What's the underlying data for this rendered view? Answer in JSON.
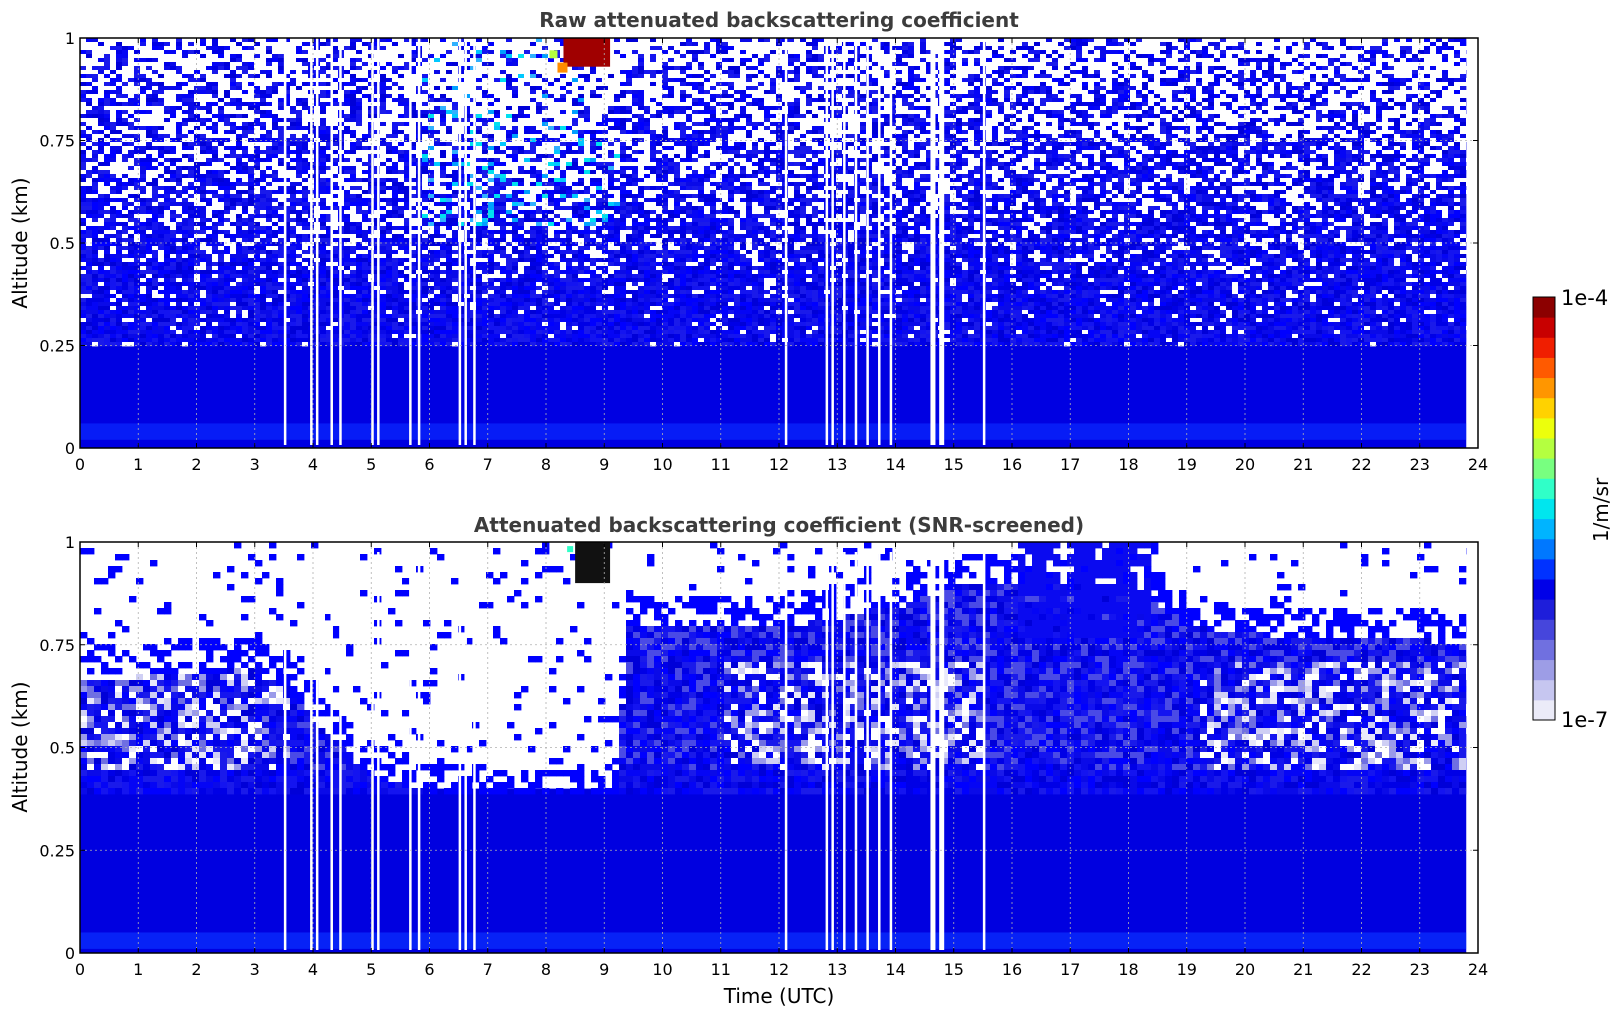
{
  "chart_data": [
    {
      "type": "heatmap",
      "title": "Raw attenuated backscattering coefficient",
      "xlabel": "",
      "ylabel": "Altitude (km)",
      "xlim": [
        0,
        24
      ],
      "ylim": [
        0,
        1
      ],
      "x_ticks": [
        "0",
        "1",
        "2",
        "3",
        "4",
        "5",
        "6",
        "7",
        "8",
        "9",
        "10",
        "11",
        "12",
        "13",
        "14",
        "15",
        "16",
        "17",
        "18",
        "19",
        "20",
        "21",
        "22",
        "23",
        "24"
      ],
      "y_ticks": [
        "0",
        "0.25",
        "0.5",
        "0.75",
        "1"
      ],
      "data_end_time": 23.8,
      "grid": true,
      "colorscale": "jet, log10 1e-7 to 1e-4",
      "features": {
        "near_surface_layer_top_km": 0.25,
        "signal_gaps_utc": [
          3.5,
          3.95,
          4.05,
          4.3,
          4.45,
          5.0,
          5.1,
          5.65,
          5.8,
          6.5,
          6.6,
          6.75,
          12.1,
          12.8,
          12.9,
          13.1,
          13.3,
          13.5,
          13.7,
          13.9,
          14.6,
          14.75,
          15.5
        ],
        "high_signal_patch": {
          "time_utc": [
            8.3,
            9.1
          ],
          "altitude_km": [
            0.93,
            1.0
          ],
          "value": "1e-4"
        }
      }
    },
    {
      "type": "heatmap",
      "title": "Attenuated backscattering coefficient (SNR-screened)",
      "xlabel": "Time (UTC)",
      "ylabel": "Altitude (km)",
      "xlim": [
        0,
        24
      ],
      "ylim": [
        0,
        1
      ],
      "x_ticks": [
        "0",
        "1",
        "2",
        "3",
        "4",
        "5",
        "6",
        "7",
        "8",
        "9",
        "10",
        "11",
        "12",
        "13",
        "14",
        "15",
        "16",
        "17",
        "18",
        "19",
        "20",
        "21",
        "22",
        "23",
        "24"
      ],
      "y_ticks": [
        "0",
        "0.25",
        "0.5",
        "0.75",
        "1"
      ],
      "data_end_time": 23.8,
      "grid": true,
      "colorscale": "jet, log10 1e-7 to 1e-4",
      "features": {
        "screened_top_km": [
          [
            0,
            0.72
          ],
          [
            3,
            0.75
          ],
          [
            3.5,
            0.7
          ],
          [
            4,
            0.62
          ],
          [
            4.5,
            0.55
          ],
          [
            5,
            0.48
          ],
          [
            6,
            0.45
          ],
          [
            7,
            0.43
          ],
          [
            8,
            0.42
          ],
          [
            9.2,
            0.45
          ],
          [
            9.3,
            0.85
          ],
          [
            12,
            0.85
          ],
          [
            14,
            0.9
          ],
          [
            15,
            0.95
          ],
          [
            16,
            0.95
          ],
          [
            18,
            0.95
          ],
          [
            19,
            0.85
          ],
          [
            21,
            0.82
          ],
          [
            23,
            0.82
          ],
          [
            23.8,
            0.8
          ]
        ],
        "high_signal_patch": {
          "time_utc": [
            8.5,
            9.1
          ],
          "altitude_km": [
            0.9,
            1.0
          ],
          "value": ">1e-4"
        }
      }
    }
  ],
  "colorbar": {
    "max_label": "1e-4",
    "min_label": "1e-7",
    "label": "1/m/sr",
    "colors": [
      "#ebebf8",
      "#c6c6f0",
      "#9d9de6",
      "#7070e0",
      "#4646dc",
      "#1e1eda",
      "#0000e8",
      "#0032ff",
      "#0078ff",
      "#00b4ff",
      "#00e6ee",
      "#30ffc8",
      "#78ff80",
      "#b4ff40",
      "#ecff0c",
      "#ffd200",
      "#ff9600",
      "#ff5a00",
      "#f01e00",
      "#c80000",
      "#8c0000"
    ]
  }
}
